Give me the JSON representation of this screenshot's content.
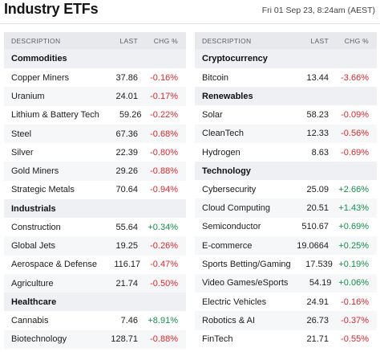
{
  "header": {
    "title": "Industry ETFs",
    "timestamp": "Fri 01 Sep 23, 8:24am (AEST)"
  },
  "columns": {
    "description": "DESCRIPTION",
    "last": "LAST",
    "change": "CHG %"
  },
  "colors": {
    "negative": "#e0262b",
    "positive": "#11914a",
    "header_bg": "#e7e9ec"
  },
  "left": [
    {
      "section": "Commodities",
      "rows": [
        {
          "name": "Copper Miners",
          "last": "37.86",
          "chg": "-0.16%",
          "dir": "neg"
        },
        {
          "name": "Uranium",
          "last": "24.01",
          "chg": "-0.17%",
          "dir": "neg"
        },
        {
          "name": "Lithium & Battery Tech",
          "last": "59.26",
          "chg": "-0.22%",
          "dir": "neg"
        },
        {
          "name": "Steel",
          "last": "67.36",
          "chg": "-0.68%",
          "dir": "neg"
        },
        {
          "name": "Silver",
          "last": "22.39",
          "chg": "-0.80%",
          "dir": "neg"
        },
        {
          "name": "Gold Miners",
          "last": "29.26",
          "chg": "-0.88%",
          "dir": "neg"
        },
        {
          "name": "Strategic Metals",
          "last": "70.64",
          "chg": "-0.94%",
          "dir": "neg"
        }
      ]
    },
    {
      "section": "Industrials",
      "rows": [
        {
          "name": "Construction",
          "last": "55.64",
          "chg": "+0.34%",
          "dir": "pos"
        },
        {
          "name": "Global Jets",
          "last": "19.25",
          "chg": "-0.26%",
          "dir": "neg"
        },
        {
          "name": "Aerospace & Defense",
          "last": "116.17",
          "chg": "-0.47%",
          "dir": "neg"
        },
        {
          "name": "Agriculture",
          "last": "21.74",
          "chg": "-0.50%",
          "dir": "neg"
        }
      ]
    },
    {
      "section": "Healthcare",
      "rows": [
        {
          "name": "Cannabis",
          "last": "7.46",
          "chg": "+8.91%",
          "dir": "pos"
        },
        {
          "name": "Biotechnology",
          "last": "128.71",
          "chg": "-0.88%",
          "dir": "neg"
        }
      ]
    }
  ],
  "right": [
    {
      "section": "Cryptocurrency",
      "rows": [
        {
          "name": "Bitcoin",
          "last": "13.44",
          "chg": "-3.66%",
          "dir": "neg"
        }
      ]
    },
    {
      "section": "Renewables",
      "rows": [
        {
          "name": "Solar",
          "last": "58.23",
          "chg": "-0.09%",
          "dir": "neg"
        },
        {
          "name": "CleanTech",
          "last": "12.33",
          "chg": "-0.56%",
          "dir": "neg"
        },
        {
          "name": "Hydrogen",
          "last": "8.63",
          "chg": "-0.69%",
          "dir": "neg"
        }
      ]
    },
    {
      "section": "Technology",
      "rows": [
        {
          "name": "Cybersecurity",
          "last": "25.09",
          "chg": "+2.66%",
          "dir": "pos"
        },
        {
          "name": "Cloud Computing",
          "last": "20.51",
          "chg": "+1.43%",
          "dir": "pos"
        },
        {
          "name": "Semiconductor",
          "last": "510.67",
          "chg": "+0.69%",
          "dir": "pos"
        },
        {
          "name": "E-commerce",
          "last": "19.0664",
          "chg": "+0.25%",
          "dir": "pos"
        },
        {
          "name": "Sports Betting/Gaming",
          "last": "17.539",
          "chg": "+0.19%",
          "dir": "pos"
        },
        {
          "name": "Video Games/eSports",
          "last": "54.19",
          "chg": "+0.06%",
          "dir": "pos"
        },
        {
          "name": "Electric Vehicles",
          "last": "24.91",
          "chg": "-0.16%",
          "dir": "neg"
        },
        {
          "name": "Robotics & AI",
          "last": "26.73",
          "chg": "-0.37%",
          "dir": "neg"
        },
        {
          "name": "FinTech",
          "last": "21.71",
          "chg": "-0.55%",
          "dir": "neg"
        }
      ]
    }
  ]
}
